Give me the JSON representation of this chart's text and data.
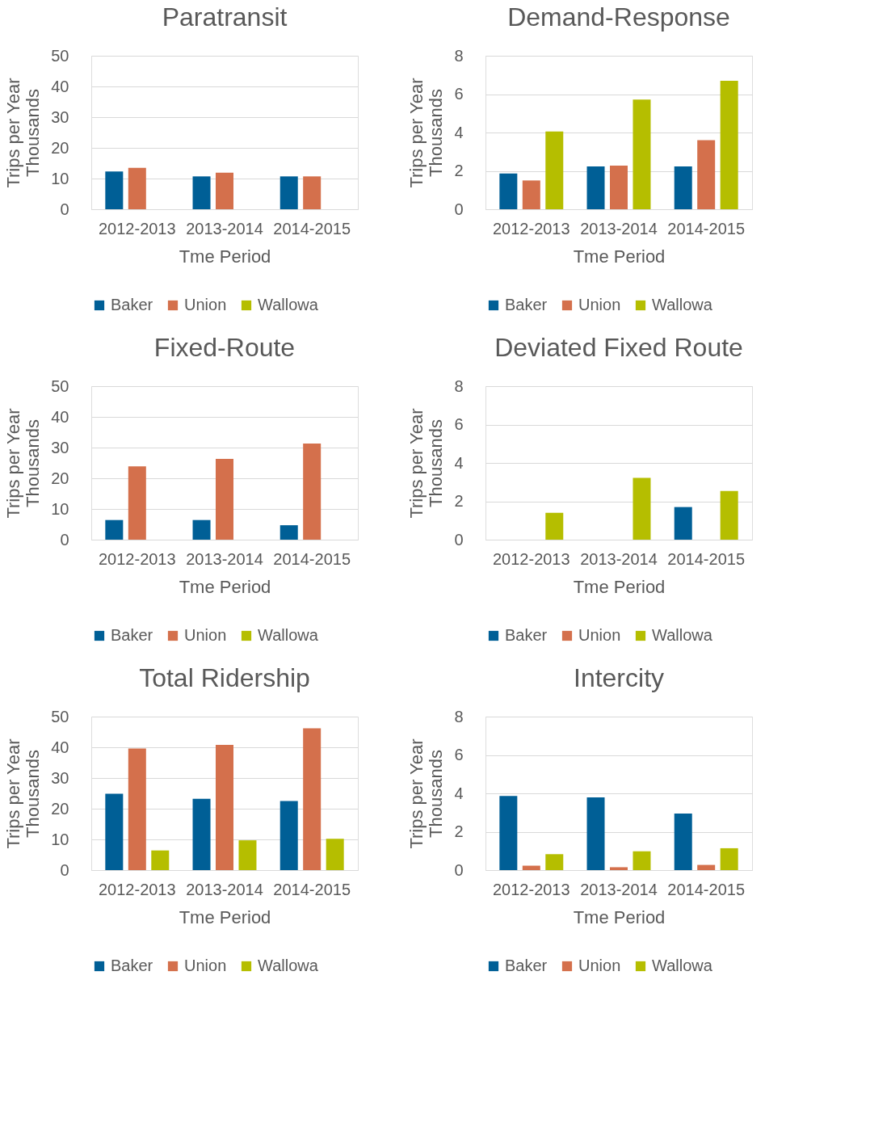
{
  "chart_data": [
    {
      "type": "bar",
      "title": "Paratransit",
      "xlabel": "Tme Period",
      "ylabel": "Trips per Year",
      "annotations": [
        "Thousands"
      ],
      "categories": [
        "2012-2013",
        "2013-2014",
        "2014-2015"
      ],
      "ylim": [
        0,
        50
      ],
      "yticks": [
        0,
        10,
        20,
        30,
        40,
        50
      ],
      "grid": "y",
      "legend": "bottom",
      "series": [
        {
          "name": "Baker",
          "color": "#005f96",
          "values": [
            12.3,
            10.7,
            10.7
          ]
        },
        {
          "name": "Union",
          "color": "#d4704c",
          "values": [
            13.5,
            11.9,
            10.7
          ]
        },
        {
          "name": "Wallowa",
          "color": "#b5be00",
          "values": [
            null,
            null,
            null
          ]
        }
      ]
    },
    {
      "type": "bar",
      "title": "Demand-Response",
      "xlabel": "Tme Period",
      "ylabel": "Trips per Year",
      "annotations": [
        "Thousands"
      ],
      "categories": [
        "2012-2013",
        "2013-2014",
        "2014-2015"
      ],
      "ylim": [
        0,
        8
      ],
      "yticks": [
        0,
        2,
        4,
        6,
        8
      ],
      "grid": "y",
      "legend": "bottom",
      "series": [
        {
          "name": "Baker",
          "color": "#005f96",
          "values": [
            1.86,
            2.23,
            2.23
          ]
        },
        {
          "name": "Union",
          "color": "#d4704c",
          "values": [
            1.5,
            2.27,
            3.6
          ]
        },
        {
          "name": "Wallowa",
          "color": "#b5be00",
          "values": [
            4.05,
            5.72,
            6.7
          ]
        }
      ]
    },
    {
      "type": "bar",
      "title": "Fixed-Route",
      "xlabel": "Tme Period",
      "ylabel": "Trips per Year",
      "annotations": [
        "Thousands"
      ],
      "categories": [
        "2012-2013",
        "2013-2014",
        "2014-2015"
      ],
      "ylim": [
        0,
        50
      ],
      "yticks": [
        0,
        10,
        20,
        30,
        40,
        50
      ],
      "grid": "y",
      "legend": "bottom",
      "series": [
        {
          "name": "Baker",
          "color": "#005f96",
          "values": [
            6.4,
            6.4,
            4.7
          ]
        },
        {
          "name": "Union",
          "color": "#d4704c",
          "values": [
            23.9,
            26.3,
            31.3
          ]
        },
        {
          "name": "Wallowa",
          "color": "#b5be00",
          "values": [
            null,
            null,
            null
          ]
        }
      ]
    },
    {
      "type": "bar",
      "title": "Deviated Fixed Route",
      "xlabel": "Tme Period",
      "ylabel": "Trips per Year",
      "annotations": [
        "Thousands"
      ],
      "categories": [
        "2012-2013",
        "2013-2014",
        "2014-2015"
      ],
      "ylim": [
        0,
        8
      ],
      "yticks": [
        0,
        2,
        4,
        6,
        8
      ],
      "grid": "y",
      "legend": "bottom",
      "series": [
        {
          "name": "Baker",
          "color": "#005f96",
          "values": [
            null,
            null,
            1.7
          ]
        },
        {
          "name": "Union",
          "color": "#d4704c",
          "values": [
            null,
            null,
            null
          ]
        },
        {
          "name": "Wallowa",
          "color": "#b5be00",
          "values": [
            1.4,
            3.22,
            2.54
          ]
        }
      ]
    },
    {
      "type": "bar",
      "title": "Total Ridership",
      "xlabel": "Tme Period",
      "ylabel": "Trips per Year",
      "annotations": [
        "Thousands"
      ],
      "categories": [
        "2012-2013",
        "2013-2014",
        "2014-2015"
      ],
      "ylim": [
        0,
        50
      ],
      "yticks": [
        0,
        10,
        20,
        30,
        40,
        50
      ],
      "grid": "y",
      "legend": "bottom",
      "series": [
        {
          "name": "Baker",
          "color": "#005f96",
          "values": [
            24.9,
            23.2,
            22.5
          ]
        },
        {
          "name": "Union",
          "color": "#d4704c",
          "values": [
            39.6,
            40.8,
            46.2
          ]
        },
        {
          "name": "Wallowa",
          "color": "#b5be00",
          "values": [
            6.4,
            9.7,
            10.2
          ]
        }
      ]
    },
    {
      "type": "bar",
      "title": "Intercity",
      "xlabel": "Tme Period",
      "ylabel": "Trips per Year",
      "annotations": [
        "Thousands"
      ],
      "categories": [
        "2012-2013",
        "2013-2014",
        "2014-2015"
      ],
      "ylim": [
        0,
        8
      ],
      "yticks": [
        0,
        2,
        4,
        6,
        8
      ],
      "grid": "y",
      "legend": "bottom",
      "series": [
        {
          "name": "Baker",
          "color": "#005f96",
          "values": [
            3.86,
            3.79,
            2.95
          ]
        },
        {
          "name": "Union",
          "color": "#d4704c",
          "values": [
            0.23,
            0.15,
            0.27
          ]
        },
        {
          "name": "Wallowa",
          "color": "#b5be00",
          "values": [
            0.83,
            0.98,
            1.14
          ]
        }
      ]
    }
  ]
}
